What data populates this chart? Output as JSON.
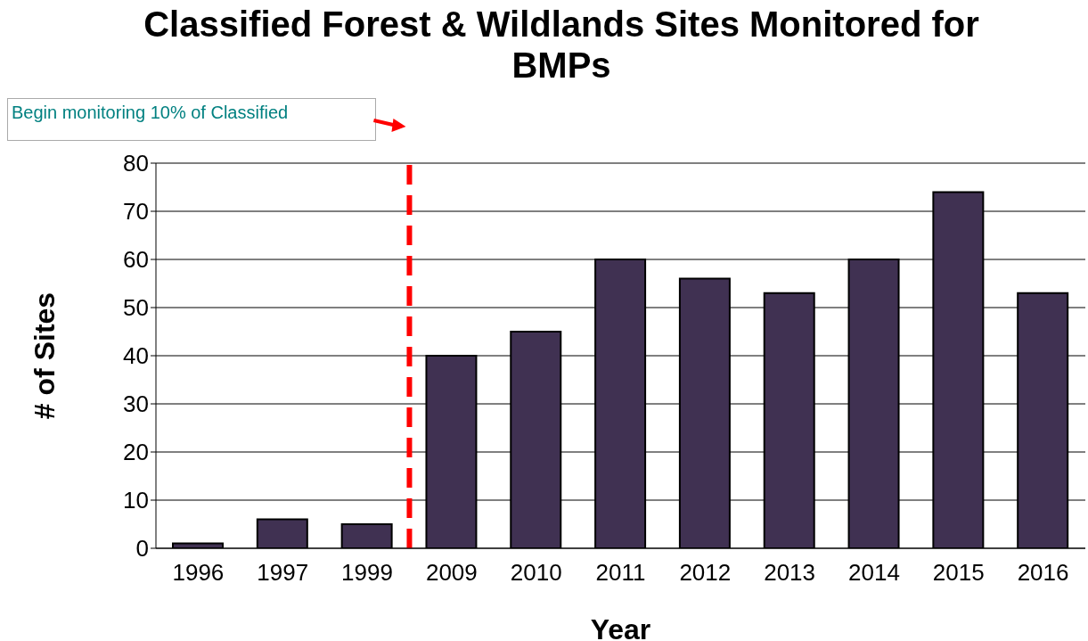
{
  "chart_data": {
    "type": "bar",
    "title": "Classified Forest & Wildlands Sites Monitored for BMPs",
    "xlabel": "Year",
    "ylabel": "# of Sites",
    "categories": [
      "1996",
      "1997",
      "1999",
      "2009",
      "2010",
      "2011",
      "2012",
      "2013",
      "2014",
      "2015",
      "2016"
    ],
    "values": [
      1,
      6,
      5,
      40,
      45,
      60,
      56,
      53,
      60,
      74,
      53
    ],
    "color": "#403152",
    "ylim": [
      0,
      80
    ],
    "yticks": [
      0,
      10,
      20,
      30,
      40,
      50,
      60,
      70,
      80
    ],
    "grid": "y",
    "annotations": [
      "Begin monitoring 10% of Classified"
    ],
    "ref_lines": [
      {
        "axis": "x",
        "value": "2009",
        "color": "#ff0000",
        "line_style": "dashed"
      }
    ]
  }
}
